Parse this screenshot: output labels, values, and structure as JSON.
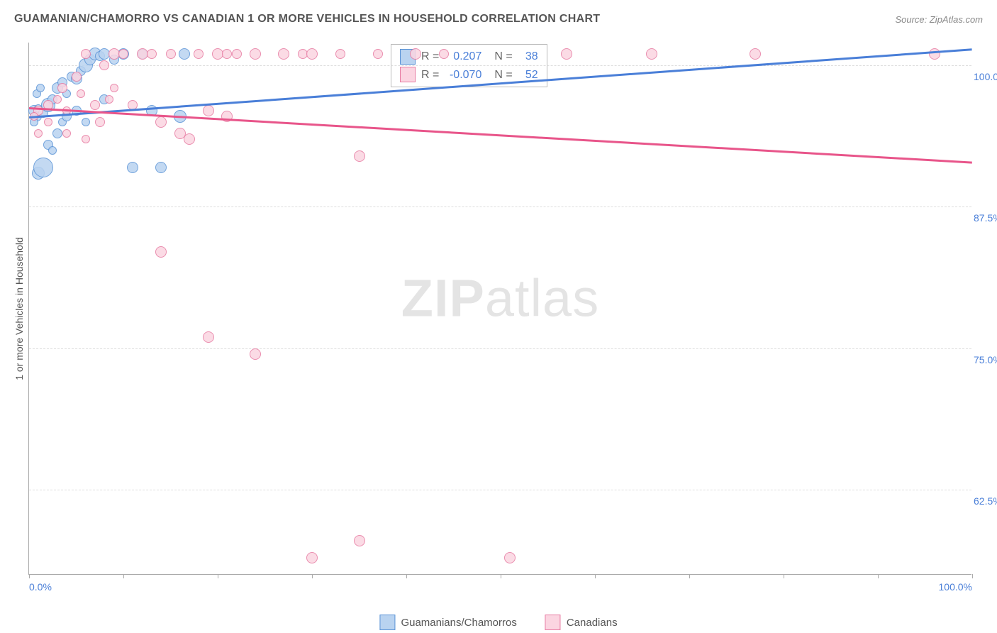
{
  "title": "GUAMANIAN/CHAMORRO VS CANADIAN 1 OR MORE VEHICLES IN HOUSEHOLD CORRELATION CHART",
  "source": "Source: ZipAtlas.com",
  "watermark_bold": "ZIP",
  "watermark_light": "atlas",
  "y_axis_label": "1 or more Vehicles in Household",
  "chart": {
    "type": "scatter",
    "xlim": [
      0,
      100
    ],
    "ylim": [
      55,
      102
    ],
    "x_ticks": [
      0,
      10,
      20,
      30,
      40,
      50,
      60,
      70,
      80,
      90,
      100
    ],
    "x_tick_labels": {
      "0": "0.0%",
      "100": "100.0%"
    },
    "y_gridlines": [
      62.5,
      75.0,
      87.5,
      100.0
    ],
    "y_tick_labels": [
      "62.5%",
      "75.0%",
      "87.5%",
      "100.0%"
    ],
    "grid_color": "#dddddd",
    "axis_color": "#aaaaaa",
    "background_color": "#ffffff",
    "label_color": "#4a7fd8",
    "series": [
      {
        "name": "Guamanians/Chamorros",
        "fill": "#b9d3f0",
        "stroke": "#5a93d6",
        "trend_color": "#4a7fd8",
        "r_value": "0.207",
        "n_value": "38",
        "trend": {
          "x1": 0,
          "y1": 95.5,
          "x2": 100,
          "y2": 101.5
        },
        "points": [
          {
            "x": 0.5,
            "y": 96,
            "r": 8
          },
          {
            "x": 0.8,
            "y": 95.5,
            "r": 7
          },
          {
            "x": 1,
            "y": 96.2,
            "r": 6
          },
          {
            "x": 1.5,
            "y": 95.8,
            "r": 7
          },
          {
            "x": 2,
            "y": 96.5,
            "r": 10
          },
          {
            "x": 2.5,
            "y": 97,
            "r": 7
          },
          {
            "x": 3,
            "y": 98,
            "r": 8
          },
          {
            "x": 3.5,
            "y": 98.5,
            "r": 7
          },
          {
            "x": 4,
            "y": 97.5,
            "r": 6
          },
          {
            "x": 4.5,
            "y": 99,
            "r": 7
          },
          {
            "x": 5,
            "y": 98.8,
            "r": 8
          },
          {
            "x": 5.5,
            "y": 99.5,
            "r": 7
          },
          {
            "x": 6,
            "y": 100,
            "r": 10
          },
          {
            "x": 6.5,
            "y": 100.5,
            "r": 8
          },
          {
            "x": 7,
            "y": 101,
            "r": 9
          },
          {
            "x": 7.5,
            "y": 100.8,
            "r": 7
          },
          {
            "x": 8,
            "y": 101,
            "r": 8
          },
          {
            "x": 8,
            "y": 97,
            "r": 7
          },
          {
            "x": 9,
            "y": 100.5,
            "r": 7
          },
          {
            "x": 10,
            "y": 101,
            "r": 8
          },
          {
            "x": 11,
            "y": 91,
            "r": 8
          },
          {
            "x": 12,
            "y": 101,
            "r": 7
          },
          {
            "x": 13,
            "y": 96,
            "r": 8
          },
          {
            "x": 14,
            "y": 91,
            "r": 8
          },
          {
            "x": 1,
            "y": 90.5,
            "r": 9
          },
          {
            "x": 1.5,
            "y": 91,
            "r": 14
          },
          {
            "x": 2,
            "y": 93,
            "r": 7
          },
          {
            "x": 2.5,
            "y": 92.5,
            "r": 6
          },
          {
            "x": 3,
            "y": 94,
            "r": 7
          },
          {
            "x": 3.5,
            "y": 95,
            "r": 6
          },
          {
            "x": 4,
            "y": 95.5,
            "r": 7
          },
          {
            "x": 0.8,
            "y": 97.5,
            "r": 6
          },
          {
            "x": 1.2,
            "y": 98,
            "r": 6
          },
          {
            "x": 5,
            "y": 96,
            "r": 7
          },
          {
            "x": 16,
            "y": 95.5,
            "r": 9
          },
          {
            "x": 16.5,
            "y": 101,
            "r": 8
          },
          {
            "x": 0.5,
            "y": 95,
            "r": 6
          },
          {
            "x": 6,
            "y": 95,
            "r": 6
          }
        ]
      },
      {
        "name": "Canadians",
        "fill": "#fbd5e1",
        "stroke": "#e77ba2",
        "trend_color": "#e8558a",
        "r_value": "-0.070",
        "n_value": "52",
        "trend": {
          "x1": 0,
          "y1": 96.3,
          "x2": 100,
          "y2": 91.5
        },
        "points": [
          {
            "x": 1,
            "y": 96,
            "r": 7
          },
          {
            "x": 2,
            "y": 96.5,
            "r": 7
          },
          {
            "x": 3,
            "y": 97,
            "r": 6
          },
          {
            "x": 3.5,
            "y": 98,
            "r": 7
          },
          {
            "x": 4,
            "y": 96,
            "r": 6
          },
          {
            "x": 5,
            "y": 99,
            "r": 7
          },
          {
            "x": 5.5,
            "y": 97.5,
            "r": 6
          },
          {
            "x": 6,
            "y": 101,
            "r": 7
          },
          {
            "x": 7,
            "y": 96.5,
            "r": 7
          },
          {
            "x": 7.5,
            "y": 95,
            "r": 7
          },
          {
            "x": 8,
            "y": 100,
            "r": 7
          },
          {
            "x": 8.5,
            "y": 97,
            "r": 6
          },
          {
            "x": 9,
            "y": 101,
            "r": 8
          },
          {
            "x": 9,
            "y": 98,
            "r": 6
          },
          {
            "x": 10,
            "y": 101,
            "r": 7
          },
          {
            "x": 11,
            "y": 96.5,
            "r": 7
          },
          {
            "x": 12,
            "y": 101,
            "r": 8
          },
          {
            "x": 13,
            "y": 101,
            "r": 7
          },
          {
            "x": 14,
            "y": 95,
            "r": 8
          },
          {
            "x": 14,
            "y": 83.5,
            "r": 8
          },
          {
            "x": 15,
            "y": 101,
            "r": 7
          },
          {
            "x": 16,
            "y": 94,
            "r": 8
          },
          {
            "x": 17,
            "y": 93.5,
            "r": 8
          },
          {
            "x": 18,
            "y": 101,
            "r": 7
          },
          {
            "x": 19,
            "y": 96,
            "r": 8
          },
          {
            "x": 19,
            "y": 76,
            "r": 8
          },
          {
            "x": 20,
            "y": 101,
            "r": 8
          },
          {
            "x": 21,
            "y": 95.5,
            "r": 8
          },
          {
            "x": 21,
            "y": 101,
            "r": 7
          },
          {
            "x": 22,
            "y": 101,
            "r": 7
          },
          {
            "x": 24,
            "y": 101,
            "r": 8
          },
          {
            "x": 24,
            "y": 74.5,
            "r": 8
          },
          {
            "x": 27,
            "y": 101,
            "r": 8
          },
          {
            "x": 29,
            "y": 101,
            "r": 7
          },
          {
            "x": 30,
            "y": 101,
            "r": 8
          },
          {
            "x": 30,
            "y": 56.5,
            "r": 8
          },
          {
            "x": 33,
            "y": 101,
            "r": 7
          },
          {
            "x": 35,
            "y": 92,
            "r": 8
          },
          {
            "x": 35,
            "y": 58,
            "r": 8
          },
          {
            "x": 37,
            "y": 101,
            "r": 7
          },
          {
            "x": 41,
            "y": 101,
            "r": 8
          },
          {
            "x": 44,
            "y": 101,
            "r": 7
          },
          {
            "x": 51,
            "y": 56.5,
            "r": 8
          },
          {
            "x": 57,
            "y": 101,
            "r": 8
          },
          {
            "x": 66,
            "y": 101,
            "r": 8
          },
          {
            "x": 77,
            "y": 101,
            "r": 8
          },
          {
            "x": 96,
            "y": 101,
            "r": 8
          },
          {
            "x": 4,
            "y": 94,
            "r": 6
          },
          {
            "x": 6,
            "y": 93.5,
            "r": 6
          },
          {
            "x": 2,
            "y": 95,
            "r": 6
          },
          {
            "x": 1,
            "y": 94,
            "r": 6
          },
          {
            "x": 0.5,
            "y": 95.5,
            "r": 6
          }
        ]
      }
    ]
  },
  "stats_box": {
    "r_label": "R =",
    "n_label": "N ="
  },
  "legend": {
    "items": [
      "Guamanians/Chamorros",
      "Canadians"
    ]
  }
}
